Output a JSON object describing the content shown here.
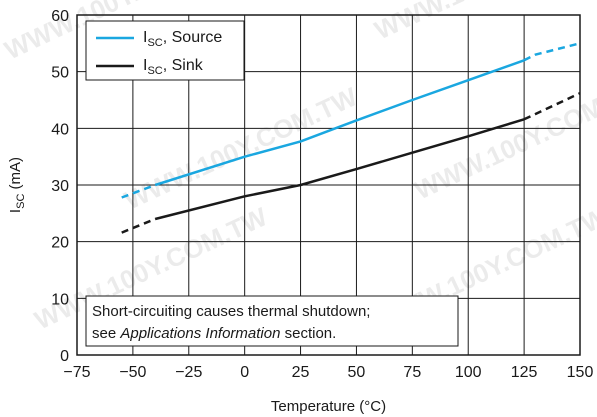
{
  "chart_data": {
    "type": "line",
    "xlabel": "Temperature (°C)",
    "ylabel": "I",
    "ylabel_sub": "SC",
    "ylabel_unit": " (mA)",
    "xlim": [
      -75,
      150
    ],
    "ylim": [
      0,
      60
    ],
    "xticks": [
      -75,
      -50,
      -25,
      0,
      25,
      50,
      75,
      100,
      125,
      150
    ],
    "yticks": [
      0,
      10,
      20,
      30,
      40,
      50,
      60
    ],
    "grid": true,
    "legend_position": "top-left",
    "series": [
      {
        "name_main": "I",
        "name_sub": "SC",
        "name_rest": ", Source",
        "color": "#1aa7e0",
        "solid": [
          [
            -40,
            30
          ],
          [
            0,
            35
          ],
          [
            25,
            37.7
          ],
          [
            50,
            41.4
          ],
          [
            75,
            45
          ],
          [
            100,
            48.5
          ],
          [
            125,
            52
          ]
        ],
        "dashed_start": [
          [
            -55,
            27.8
          ],
          [
            -40,
            30
          ]
        ],
        "dashed_end": [
          [
            125,
            52
          ],
          [
            130,
            53
          ],
          [
            150,
            55
          ]
        ]
      },
      {
        "name_main": "I",
        "name_sub": "SC",
        "name_rest": ", Sink",
        "color": "#1a1a1a",
        "solid": [
          [
            -40,
            24
          ],
          [
            0,
            28
          ],
          [
            25,
            30
          ],
          [
            50,
            32.8
          ],
          [
            75,
            35.7
          ],
          [
            100,
            38.6
          ],
          [
            125,
            41.6
          ]
        ],
        "dashed_start": [
          [
            -55,
            21.6
          ],
          [
            -40,
            24
          ]
        ],
        "dashed_end": [
          [
            125,
            41.6
          ],
          [
            150,
            46.2
          ]
        ]
      }
    ],
    "annotation": {
      "line1": "Short-circuiting causes thermal shutdown;",
      "line2_pre": "see ",
      "line2_italic": "Applications Information",
      "line2_post": " section."
    }
  },
  "watermark": "WWW.100Y.COM.TW"
}
